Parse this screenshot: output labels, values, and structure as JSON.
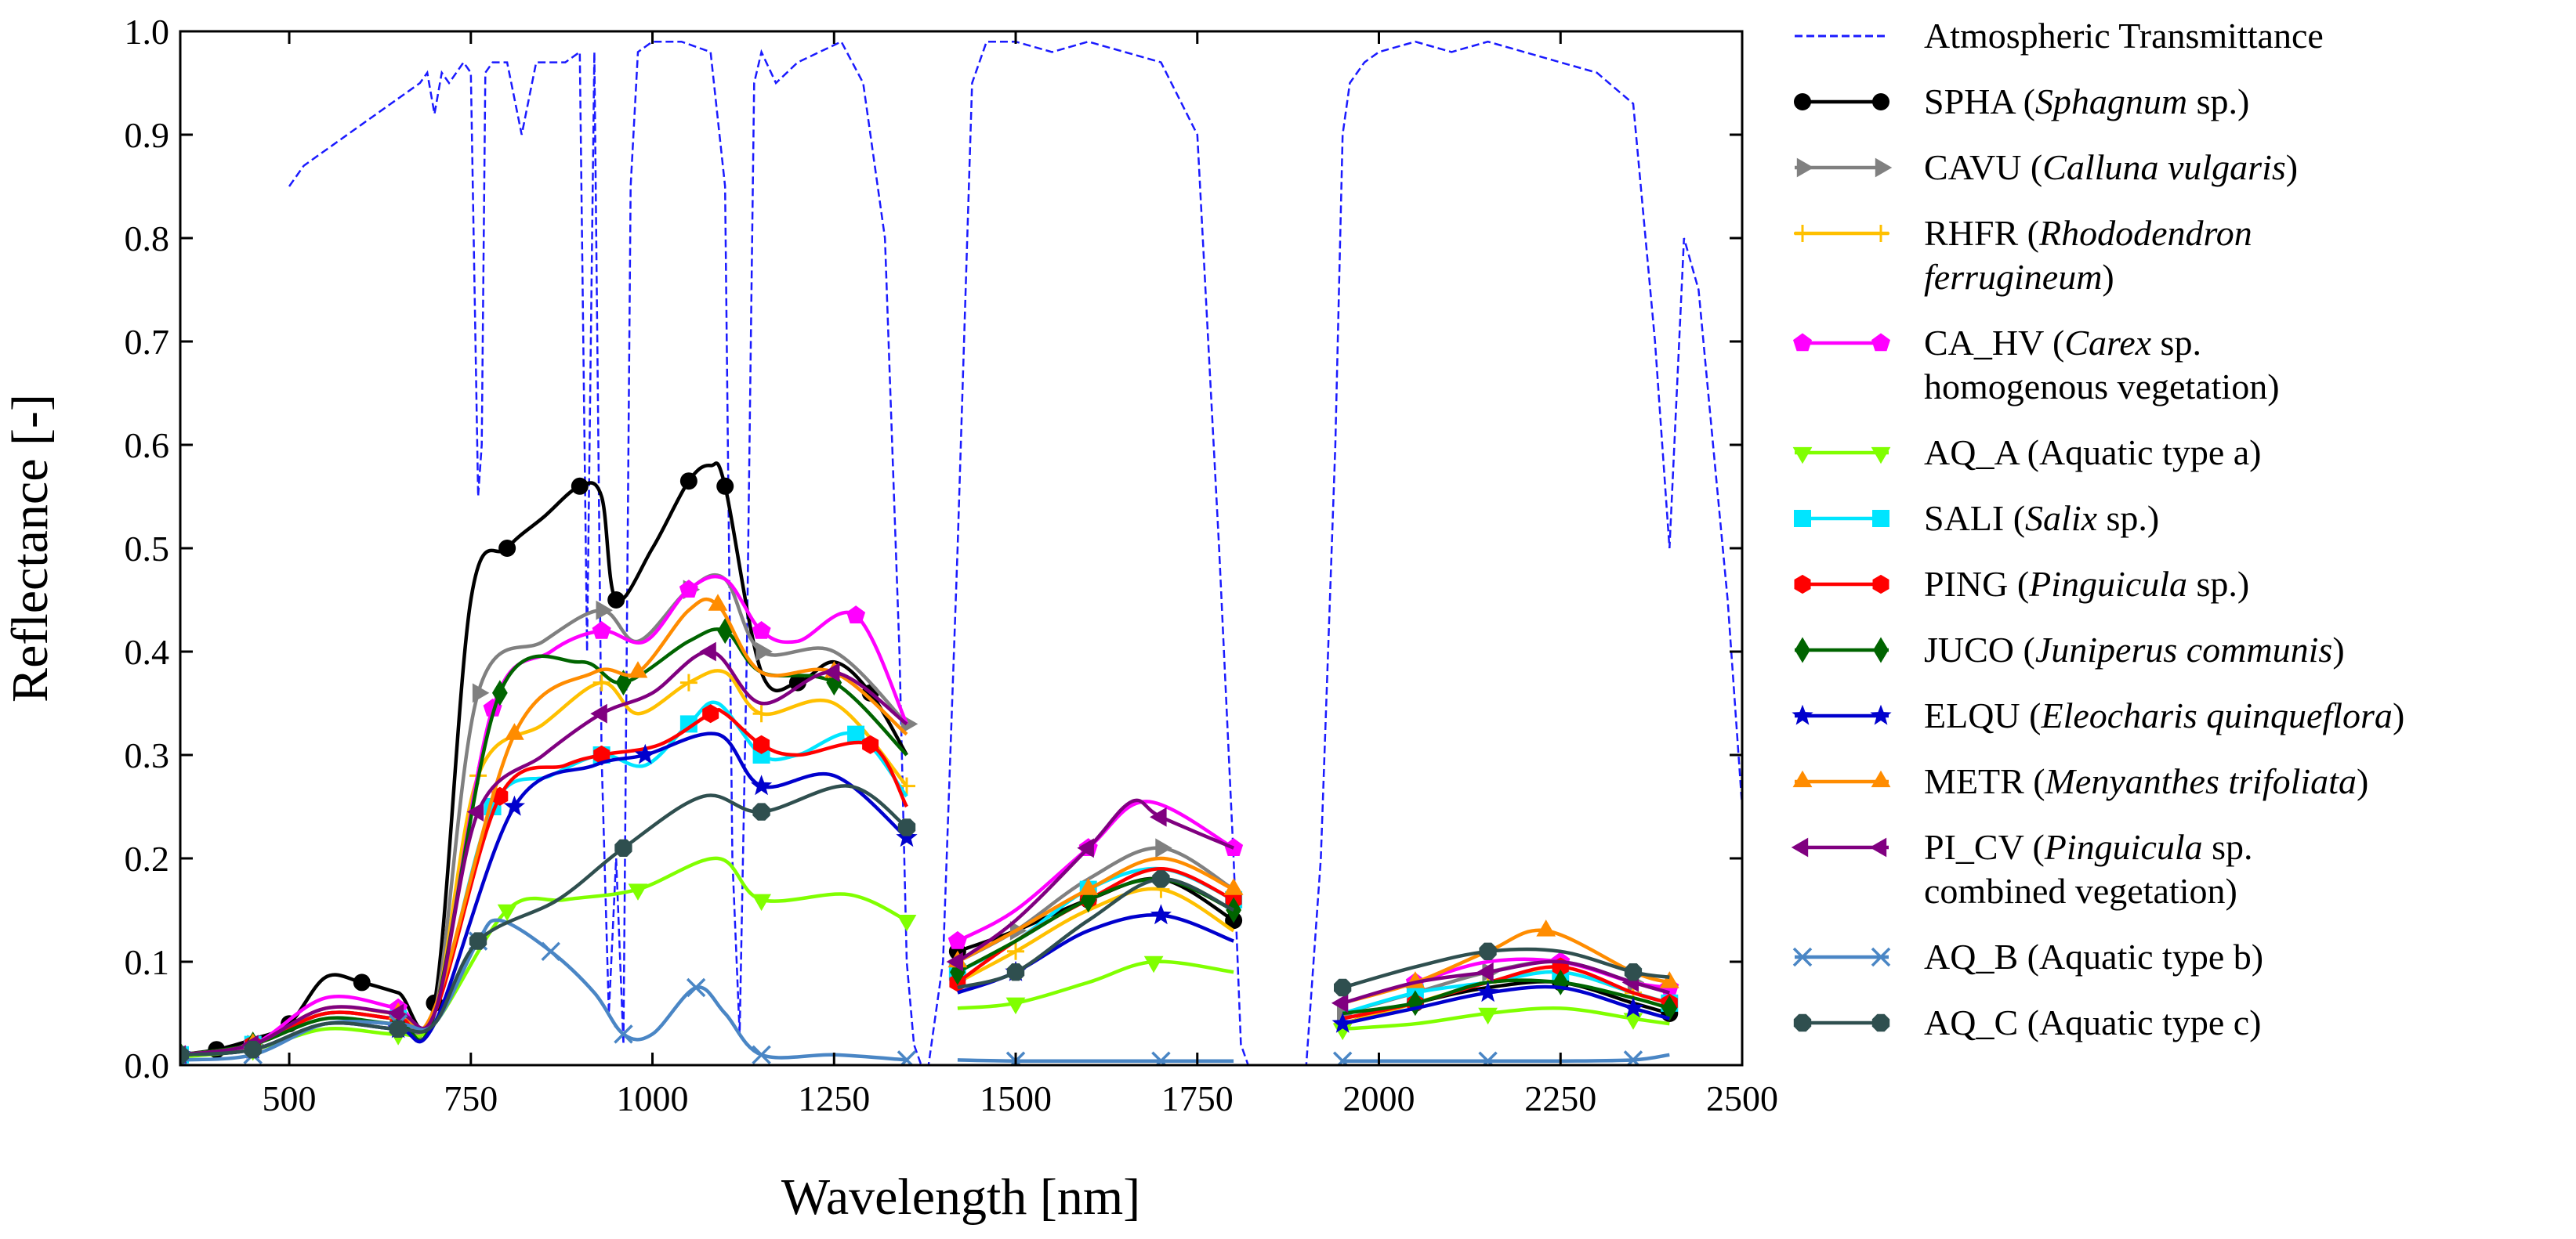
{
  "chart_data": {
    "type": "line",
    "title": "",
    "xlabel": "Wavelength [nm]",
    "ylabel": "Reflectance [-]",
    "xlim": [
      350,
      2500
    ],
    "ylim": [
      0,
      1.0
    ],
    "xticks": [
      500,
      750,
      1000,
      1250,
      1500,
      1750,
      2000,
      2250,
      2500
    ],
    "yticks": [
      0.0,
      0.1,
      0.2,
      0.3,
      0.4,
      0.5,
      0.6,
      0.7,
      0.8,
      0.9,
      1.0
    ],
    "ytick_labels": [
      "0.0",
      "0.1",
      "0.2",
      "0.3",
      "0.4",
      "0.5",
      "0.6",
      "0.7",
      "0.8",
      "0.9",
      "1.0"
    ],
    "legend_position": "right, outside plot",
    "atmosphere": {
      "name": "Atmospheric Transmittance",
      "color": "#1a1aff",
      "style": "dashed",
      "x": [
        500,
        520,
        540,
        560,
        580,
        600,
        620,
        640,
        660,
        680,
        690,
        700,
        710,
        720,
        730,
        740,
        750,
        760,
        765,
        770,
        780,
        800,
        820,
        840,
        860,
        880,
        900,
        910,
        920,
        930,
        940,
        950,
        960,
        970,
        980,
        1000,
        1040,
        1080,
        1100,
        1110,
        1120,
        1130,
        1140,
        1150,
        1170,
        1200,
        1230,
        1260,
        1290,
        1320,
        1340,
        1350,
        1360,
        1370,
        1380,
        1400,
        1420,
        1440,
        1460,
        1480,
        1500,
        1550,
        1600,
        1650,
        1700,
        1750,
        1780,
        1800,
        1810,
        1820,
        1830,
        1850,
        1880,
        1900,
        1920,
        1940,
        1950,
        1960,
        1980,
        2000,
        2050,
        2100,
        2150,
        2200,
        2250,
        2300,
        2350,
        2380,
        2400,
        2420,
        2440,
        2460,
        2480,
        2500
      ],
      "y": [
        0.85,
        0.87,
        0.88,
        0.89,
        0.9,
        0.91,
        0.92,
        0.93,
        0.94,
        0.95,
        0.96,
        0.92,
        0.96,
        0.95,
        0.96,
        0.97,
        0.96,
        0.55,
        0.6,
        0.96,
        0.97,
        0.97,
        0.9,
        0.97,
        0.97,
        0.97,
        0.98,
        0.4,
        0.98,
        0.3,
        0.05,
        0.2,
        0.02,
        0.85,
        0.98,
        0.99,
        0.99,
        0.98,
        0.85,
        0.2,
        0.03,
        0.4,
        0.95,
        0.98,
        0.95,
        0.97,
        0.98,
        0.99,
        0.95,
        0.8,
        0.4,
        0.1,
        0.02,
        0.0,
        0.0,
        0.1,
        0.5,
        0.95,
        0.99,
        0.99,
        0.99,
        0.98,
        0.99,
        0.98,
        0.97,
        0.9,
        0.5,
        0.2,
        0.02,
        0.0,
        0.0,
        0.0,
        0.0,
        0.0,
        0.2,
        0.6,
        0.9,
        0.95,
        0.97,
        0.98,
        0.99,
        0.98,
        0.99,
        0.98,
        0.97,
        0.96,
        0.93,
        0.7,
        0.5,
        0.8,
        0.75,
        0.6,
        0.45,
        0.25
      ]
    },
    "series": [
      {
        "name": "SPHA",
        "label_normal_1": "SPHA (",
        "label_italic": "Sphagnum",
        "label_normal_2": " sp.)",
        "label_line2": "",
        "color": "#000000",
        "marker": "circle",
        "x": [
          350,
          400,
          450,
          500,
          550,
          600,
          650,
          700,
          750,
          800,
          850,
          900,
          930,
          950,
          1000,
          1050,
          1080,
          1100,
          1150,
          1200,
          1250,
          1300,
          1350,
          1420,
          1500,
          1600,
          1700,
          1800,
          1950,
          2050,
          2150,
          2250,
          2350,
          2400
        ],
        "y": [
          0.01,
          0.015,
          0.025,
          0.04,
          0.085,
          0.08,
          0.07,
          0.06,
          0.45,
          0.5,
          0.53,
          0.56,
          0.55,
          0.45,
          0.5,
          0.565,
          0.58,
          0.56,
          0.38,
          0.37,
          0.39,
          0.36,
          0.3,
          0.11,
          0.13,
          0.16,
          0.18,
          0.14,
          0.04,
          0.06,
          0.075,
          0.08,
          0.06,
          0.05
        ]
      },
      {
        "name": "CAVU",
        "label_normal_1": "CAVU (",
        "label_italic": "Calluna vulgaris",
        "label_normal_2": ")",
        "label_line2": "",
        "color": "#808080",
        "marker": "triangle-right",
        "x": [
          350,
          450,
          550,
          650,
          700,
          760,
          850,
          930,
          980,
          1050,
          1100,
          1150,
          1250,
          1350,
          1420,
          1500,
          1600,
          1700,
          1800,
          1950,
          2050,
          2150,
          2250,
          2350,
          2400
        ],
        "y": [
          0.01,
          0.02,
          0.05,
          0.045,
          0.05,
          0.36,
          0.41,
          0.44,
          0.41,
          0.46,
          0.47,
          0.4,
          0.4,
          0.33,
          0.1,
          0.13,
          0.18,
          0.21,
          0.17,
          0.05,
          0.07,
          0.09,
          0.1,
          0.08,
          0.07
        ]
      },
      {
        "name": "RHFR",
        "label_normal_1": "RHFR (",
        "label_italic": "Rhododendron",
        "label_normal_2": "",
        "label_line2": "ferrugineum)",
        "color": "#ffc000",
        "marker": "plus",
        "x": [
          350,
          450,
          550,
          650,
          700,
          760,
          850,
          930,
          980,
          1050,
          1100,
          1150,
          1250,
          1350,
          1420,
          1500,
          1600,
          1700,
          1800,
          1950,
          2050,
          2150,
          2250,
          2350,
          2400
        ],
        "y": [
          0.01,
          0.02,
          0.05,
          0.045,
          0.05,
          0.28,
          0.33,
          0.37,
          0.34,
          0.37,
          0.38,
          0.34,
          0.35,
          0.27,
          0.08,
          0.11,
          0.15,
          0.17,
          0.13,
          0.04,
          0.06,
          0.08,
          0.09,
          0.07,
          0.06
        ]
      },
      {
        "name": "CA_HV",
        "label_normal_1": "CA_HV (",
        "label_italic": "Carex",
        "label_normal_2": " sp.",
        "label_line2": "homogenous vegetation)",
        "color": "#ff00ff",
        "marker": "pentagon",
        "x": [
          350,
          450,
          550,
          650,
          700,
          780,
          860,
          930,
          990,
          1050,
          1100,
          1150,
          1200,
          1280,
          1350,
          1420,
          1500,
          1600,
          1680,
          1800,
          1950,
          2050,
          2150,
          2250,
          2350,
          2400
        ],
        "y": [
          0.01,
          0.02,
          0.065,
          0.055,
          0.05,
          0.345,
          0.4,
          0.42,
          0.41,
          0.46,
          0.47,
          0.42,
          0.41,
          0.435,
          0.33,
          0.12,
          0.15,
          0.21,
          0.255,
          0.21,
          0.06,
          0.08,
          0.1,
          0.1,
          0.08,
          0.075
        ]
      },
      {
        "name": "AQ_A",
        "label_normal_1": "AQ_A (Aquatic type a)",
        "label_italic": "",
        "label_normal_2": "",
        "label_line2": "",
        "color": "#80ff00",
        "marker": "triangle-down",
        "x": [
          350,
          450,
          550,
          650,
          700,
          800,
          880,
          980,
          1090,
          1150,
          1270,
          1350,
          1420,
          1500,
          1600,
          1690,
          1800,
          1950,
          2050,
          2150,
          2250,
          2350,
          2400
        ],
        "y": [
          0.008,
          0.015,
          0.035,
          0.03,
          0.04,
          0.15,
          0.16,
          0.17,
          0.2,
          0.16,
          0.165,
          0.14,
          0.055,
          0.06,
          0.08,
          0.1,
          0.09,
          0.035,
          0.04,
          0.05,
          0.055,
          0.045,
          0.04
        ]
      },
      {
        "name": "SALI",
        "label_normal_1": "SALI (",
        "label_italic": "Salix",
        "label_normal_2": " sp.)",
        "label_line2": "",
        "color": "#00e5ff",
        "marker": "square",
        "x": [
          350,
          450,
          550,
          650,
          700,
          780,
          860,
          930,
          990,
          1050,
          1090,
          1150,
          1200,
          1280,
          1350,
          1420,
          1500,
          1600,
          1700,
          1800,
          1950,
          2050,
          2150,
          2250,
          2350,
          2400
        ],
        "y": [
          0.01,
          0.02,
          0.05,
          0.045,
          0.05,
          0.25,
          0.28,
          0.3,
          0.29,
          0.33,
          0.35,
          0.3,
          0.3,
          0.32,
          0.26,
          0.09,
          0.12,
          0.17,
          0.19,
          0.16,
          0.05,
          0.07,
          0.08,
          0.09,
          0.07,
          0.06
        ]
      },
      {
        "name": "PING",
        "label_normal_1": "PING (",
        "label_italic": "Pinguicula",
        "label_normal_2": " sp.)",
        "label_line2": "",
        "color": "#ff0000",
        "marker": "hexagon",
        "x": [
          350,
          450,
          550,
          650,
          700,
          790,
          880,
          930,
          1010,
          1080,
          1100,
          1150,
          1200,
          1300,
          1350,
          1420,
          1500,
          1600,
          1700,
          1800,
          1950,
          2050,
          2150,
          2250,
          2350,
          2400
        ],
        "y": [
          0.01,
          0.02,
          0.05,
          0.045,
          0.05,
          0.26,
          0.29,
          0.3,
          0.31,
          0.34,
          0.34,
          0.31,
          0.3,
          0.31,
          0.25,
          0.08,
          0.12,
          0.16,
          0.19,
          0.16,
          0.045,
          0.06,
          0.08,
          0.095,
          0.07,
          0.06
        ]
      },
      {
        "name": "JUCO",
        "label_normal_1": "JUCO (",
        "label_italic": "Juniperus communis",
        "label_normal_2": ")",
        "label_line2": "",
        "color": "#006400",
        "marker": "diamond",
        "x": [
          350,
          450,
          550,
          650,
          700,
          790,
          900,
          960,
          1050,
          1100,
          1150,
          1250,
          1350,
          1420,
          1500,
          1600,
          1700,
          1800,
          1950,
          2050,
          2150,
          2250,
          2350,
          2400
        ],
        "y": [
          0.01,
          0.02,
          0.045,
          0.04,
          0.05,
          0.36,
          0.39,
          0.37,
          0.41,
          0.42,
          0.38,
          0.37,
          0.3,
          0.09,
          0.12,
          0.16,
          0.18,
          0.15,
          0.05,
          0.06,
          0.08,
          0.08,
          0.065,
          0.055
        ]
      },
      {
        "name": "ELQU",
        "label_normal_1": "ELQU (",
        "label_italic": "Eleocharis quinqueflora",
        "label_normal_2": ")",
        "label_line2": "",
        "color": "#0000cd",
        "marker": "star",
        "x": [
          350,
          450,
          550,
          650,
          700,
          810,
          920,
          990,
          1090,
          1150,
          1250,
          1350,
          1420,
          1500,
          1600,
          1700,
          1800,
          1950,
          2050,
          2150,
          2250,
          2350,
          2400
        ],
        "y": [
          0.01,
          0.015,
          0.04,
          0.035,
          0.04,
          0.25,
          0.29,
          0.3,
          0.32,
          0.27,
          0.28,
          0.22,
          0.07,
          0.09,
          0.13,
          0.145,
          0.12,
          0.04,
          0.055,
          0.07,
          0.075,
          0.055,
          0.045
        ]
      },
      {
        "name": "METR",
        "label_normal_1": "METR (",
        "label_italic": "Menyanthes trifoliata",
        "label_normal_2": ")",
        "label_line2": "",
        "color": "#ff8c00",
        "marker": "triangle-up",
        "x": [
          350,
          450,
          550,
          650,
          700,
          810,
          920,
          980,
          1050,
          1090,
          1150,
          1250,
          1350,
          1420,
          1500,
          1600,
          1700,
          1800,
          1950,
          2050,
          2150,
          2230,
          2350,
          2400
        ],
        "y": [
          0.01,
          0.02,
          0.055,
          0.05,
          0.055,
          0.32,
          0.38,
          0.38,
          0.44,
          0.445,
          0.38,
          0.38,
          0.32,
          0.1,
          0.13,
          0.17,
          0.2,
          0.17,
          0.06,
          0.08,
          0.11,
          0.13,
          0.09,
          0.08
        ]
      },
      {
        "name": "PI_CV",
        "label_normal_1": "PI_CV (",
        "label_italic": "Pinguicula",
        "label_normal_2": " sp.",
        "label_line2": "combined vegetation)",
        "color": "#800080",
        "marker": "triangle-left",
        "x": [
          350,
          450,
          550,
          650,
          700,
          760,
          850,
          930,
          1000,
          1080,
          1150,
          1250,
          1350,
          1420,
          1500,
          1600,
          1660,
          1700,
          1800,
          1950,
          2050,
          2150,
          2250,
          2350,
          2400
        ],
        "y": [
          0.01,
          0.02,
          0.055,
          0.05,
          0.05,
          0.245,
          0.3,
          0.34,
          0.36,
          0.4,
          0.35,
          0.38,
          0.33,
          0.1,
          0.14,
          0.21,
          0.255,
          0.24,
          0.21,
          0.06,
          0.08,
          0.09,
          0.1,
          0.08,
          0.07
        ]
      },
      {
        "name": "AQ_B",
        "label_normal_1": "AQ_B (Aquatic type b)",
        "label_italic": "",
        "label_normal_2": "",
        "label_line2": "",
        "color": "#4a86c5",
        "marker": "x",
        "x": [
          350,
          450,
          550,
          650,
          700,
          760,
          790,
          860,
          920,
          960,
          1000,
          1060,
          1100,
          1150,
          1250,
          1350,
          1420,
          1500,
          1600,
          1700,
          1800,
          1950,
          2050,
          2150,
          2250,
          2350,
          2400
        ],
        "y": [
          0.005,
          0.01,
          0.04,
          0.04,
          0.04,
          0.12,
          0.14,
          0.11,
          0.07,
          0.03,
          0.03,
          0.075,
          0.05,
          0.01,
          0.01,
          0.005,
          0.005,
          0.004,
          0.004,
          0.004,
          0.004,
          0.004,
          0.004,
          0.004,
          0.004,
          0.005,
          0.01
        ]
      },
      {
        "name": "AQ_C",
        "label_normal_1": "AQ_C (Aquatic type c)",
        "label_italic": "",
        "label_normal_2": "",
        "label_line2": "",
        "color": "#2f4f4f",
        "marker": "octagon",
        "x": [
          350,
          450,
          550,
          650,
          700,
          760,
          870,
          960,
          1070,
          1150,
          1270,
          1350,
          1420,
          1500,
          1600,
          1700,
          1800,
          1950,
          2050,
          2150,
          2250,
          2350,
          2400
        ],
        "y": [
          0.01,
          0.015,
          0.04,
          0.035,
          0.04,
          0.12,
          0.16,
          0.21,
          0.26,
          0.245,
          0.27,
          0.23,
          0.075,
          0.09,
          0.14,
          0.18,
          0.15,
          0.075,
          0.095,
          0.11,
          0.11,
          0.09,
          0.085
        ]
      }
    ]
  }
}
